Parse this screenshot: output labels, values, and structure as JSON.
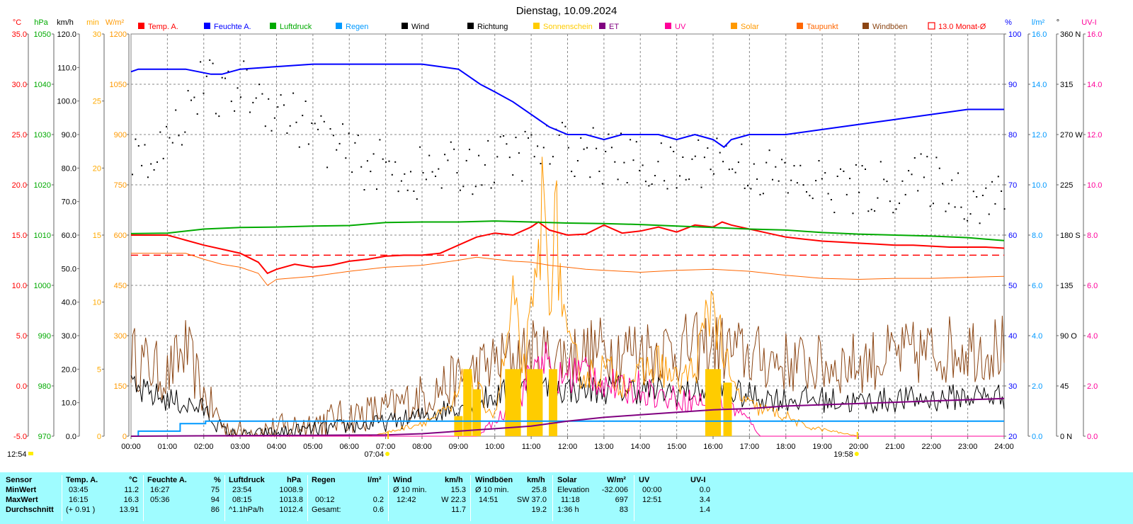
{
  "title": "Dienstag, 10.09.2024",
  "sunrise": {
    "time": "07:04",
    "hour": 7.067
  },
  "sunset": {
    "time": "19:58",
    "hour": 19.967
  },
  "moon_left": "12:54",
  "colors": {
    "temp": "#ff0000",
    "humidity": "#0000ff",
    "pressure": "#00aa00",
    "rain": "#0099ff",
    "wind": "#000000",
    "direction": "#000000",
    "sunshine": "#ffcc00",
    "et": "#800080",
    "uv": "#ff0099",
    "solar": "#ff9900",
    "dewpoint": "#ff6600",
    "gust": "#8b4513",
    "month_avg": "#ff0000"
  },
  "legend": [
    {
      "label": "Temp. A.",
      "color": "#ff0000",
      "text_color": "#ff0000",
      "style": "box"
    },
    {
      "label": "Feuchte A.",
      "color": "#0000ff",
      "text_color": "#0000ff",
      "style": "box"
    },
    {
      "label": "Luftdruck",
      "color": "#00aa00",
      "text_color": "#00aa00",
      "style": "box"
    },
    {
      "label": "Regen",
      "color": "#0099ff",
      "text_color": "#0099ff",
      "style": "box"
    },
    {
      "label": "Wind",
      "color": "#000000",
      "text_color": "#000000",
      "style": "box"
    },
    {
      "label": "Richtung",
      "color": "#000000",
      "text_color": "#000000",
      "style": "box"
    },
    {
      "label": "Sonnenschein",
      "color": "#ffcc00",
      "text_color": "#ffcc00",
      "style": "box"
    },
    {
      "label": "ET",
      "color": "#800080",
      "text_color": "#800080",
      "style": "box"
    },
    {
      "label": "UV",
      "color": "#ff0099",
      "text_color": "#ff0099",
      "style": "box"
    },
    {
      "label": "Solar",
      "color": "#ff9900",
      "text_color": "#ff9900",
      "style": "box"
    },
    {
      "label": "Taupunkt",
      "color": "#ff6600",
      "text_color": "#ff6600",
      "style": "box"
    },
    {
      "label": "Windböen",
      "color": "#8b4513",
      "text_color": "#8b4513",
      "style": "box"
    },
    {
      "label": "13.0 Monat-Ø",
      "color": "#ff0000",
      "text_color": "#ff0000",
      "style": "outline"
    }
  ],
  "axes": {
    "temp": {
      "unit": "°C",
      "min": -5,
      "max": 35,
      "ticks": [
        "35.0",
        "30.0",
        "25.0",
        "20.0",
        "15.0",
        "10.0",
        "5.0",
        "0.0",
        "-5.0"
      ],
      "color": "#ff0000"
    },
    "pressure": {
      "unit": "hPa",
      "min": 970,
      "max": 1050,
      "ticks": [
        "1050",
        "1040",
        "1030",
        "1020",
        "1010",
        "1000",
        "990",
        "980",
        "970"
      ],
      "color": "#00aa00"
    },
    "wind": {
      "unit": "km/h",
      "min": 0,
      "max": 120,
      "ticks": [
        "120.0",
        "110.0",
        "100.0",
        "90.0",
        "80.0",
        "70.0",
        "60.0",
        "50.0",
        "40.0",
        "30.0",
        "20.0",
        "10.0",
        "0.0"
      ],
      "color": "#000000"
    },
    "sunshine_min": {
      "unit": "min",
      "min": 0,
      "max": 30,
      "ticks": [
        "30",
        "25",
        "20",
        "15",
        "10",
        "5",
        "0"
      ],
      "color": "#ffaa00"
    },
    "solar": {
      "unit": "W/m²",
      "min": 0,
      "max": 1200,
      "ticks": [
        "1200",
        "1050",
        "900",
        "750",
        "600",
        "450",
        "300",
        "150",
        "0"
      ],
      "color": "#ff9900"
    },
    "humidity": {
      "unit": "%",
      "min": 20,
      "max": 100,
      "ticks": [
        "100",
        "90",
        "80",
        "70",
        "60",
        "50",
        "40",
        "30",
        "20"
      ],
      "color": "#0000ff"
    },
    "rain": {
      "unit": "l/m²",
      "min": 0,
      "max": 16,
      "ticks": [
        "16.0",
        "14.0",
        "12.0",
        "10.0",
        "8.0",
        "6.0",
        "4.0",
        "2.0",
        "0.0"
      ],
      "color": "#0099ff"
    },
    "direction": {
      "unit": "°",
      "min": 0,
      "max": 360,
      "ticks": [
        "360 N",
        "315",
        "270 W",
        "225",
        "180 S",
        "135",
        "90 O",
        "45",
        "0 N"
      ],
      "color": "#000000"
    },
    "uv": {
      "unit": "UV-I",
      "min": 0,
      "max": 16,
      "ticks": [
        "16.0",
        "14.0",
        "12.0",
        "10.0",
        "8.0",
        "6.0",
        "4.0",
        "2.0",
        "0.0"
      ],
      "color": "#ff0099"
    },
    "time_ticks": [
      "00:00",
      "01:00",
      "02:00",
      "03:00",
      "04:00",
      "05:00",
      "06:00",
      "07:00",
      "08:00",
      "09:00",
      "10:00",
      "11:00",
      "12:00",
      "13:00",
      "14:00",
      "15:00",
      "16:00",
      "17:00",
      "18:00",
      "19:00",
      "20:00",
      "21:00",
      "22:00",
      "23:00",
      "24:00"
    ]
  },
  "chart_data": {
    "type": "line",
    "title": "Dienstag, 10.09.2024",
    "x_unit": "hour",
    "month_avg_temp": 13.0,
    "series": [
      {
        "name": "Temp. A.",
        "axis": "temp",
        "color": "#ff0000",
        "x": [
          0,
          0.5,
          1,
          1.5,
          2,
          2.5,
          3,
          3.5,
          3.75,
          4,
          4.5,
          5,
          5.5,
          6,
          6.5,
          7,
          7.5,
          8,
          8.5,
          9,
          9.5,
          10,
          10.5,
          11,
          11.2,
          11.5,
          12,
          12.5,
          13,
          13.5,
          14,
          14.5,
          15,
          15.5,
          16,
          16.25,
          16.5,
          17,
          17.5,
          18,
          18.5,
          19,
          19.5,
          20,
          20.5,
          21,
          21.5,
          22,
          22.5,
          23,
          23.5,
          24
        ],
        "y": [
          15.0,
          15.0,
          15.0,
          14.5,
          14.0,
          13.6,
          13.2,
          12.3,
          11.2,
          11.6,
          12.1,
          11.8,
          12.0,
          12.4,
          12.6,
          12.9,
          13.0,
          13.0,
          13.2,
          14.0,
          14.8,
          15.2,
          15.0,
          15.8,
          16.3,
          15.5,
          15.0,
          15.1,
          16.0,
          15.2,
          15.4,
          15.8,
          15.3,
          16.0,
          15.8,
          16.3,
          16.0,
          15.6,
          15.2,
          14.8,
          14.6,
          14.4,
          14.3,
          14.2,
          14.1,
          14.0,
          14.0,
          13.9,
          13.8,
          13.8,
          13.8,
          13.7
        ]
      },
      {
        "name": "Feuchte A.",
        "axis": "humidity",
        "color": "#0000ff",
        "x": [
          0,
          0.2,
          1.5,
          2.2,
          2.5,
          3,
          4,
          5,
          5.5,
          7,
          8,
          8.5,
          9,
          9.3,
          9.6,
          10,
          10.5,
          11,
          11.5,
          12,
          12.5,
          13,
          13.5,
          14,
          14.5,
          15,
          15.5,
          16,
          16.3,
          16.5,
          17,
          18,
          19,
          20,
          21,
          22,
          23,
          23.5,
          24
        ],
        "y": [
          92.5,
          93,
          93,
          92,
          92,
          93,
          93.5,
          94,
          94,
          94,
          94,
          93.5,
          93,
          91.5,
          90,
          88.5,
          86.5,
          84,
          81.5,
          80,
          80,
          79,
          80,
          80,
          80,
          79,
          80,
          79,
          77.5,
          79,
          80,
          80,
          81,
          82,
          83,
          84,
          85,
          85,
          85
        ]
      },
      {
        "name": "Luftdruck",
        "axis": "pressure",
        "color": "#00aa00",
        "x": [
          0,
          1,
          2,
          3,
          4,
          5,
          6,
          7,
          8,
          9,
          10,
          11,
          12,
          13,
          14,
          15,
          16,
          17,
          18,
          19,
          20,
          21,
          22,
          23,
          23.5,
          24
        ],
        "y": [
          1010.3,
          1010.4,
          1011.2,
          1011.5,
          1011.6,
          1011.8,
          1011.9,
          1012.5,
          1012.6,
          1012.6,
          1012.8,
          1012.6,
          1012.4,
          1012.3,
          1012.1,
          1011.8,
          1011.5,
          1011.2,
          1011.0,
          1010.5,
          1010.2,
          1010.0,
          1009.8,
          1009.5,
          1009.2,
          1008.9
        ]
      },
      {
        "name": "Taupunkt",
        "axis": "temp",
        "color": "#ff6600",
        "x": [
          0,
          1,
          1.5,
          2,
          2.5,
          3,
          3.5,
          3.75,
          4,
          5,
          6,
          7,
          8,
          9,
          9.5,
          10,
          10.5,
          11,
          11.5,
          12,
          12.5,
          13,
          14,
          15,
          16,
          17,
          18,
          19,
          20,
          21,
          22,
          23,
          24
        ],
        "y": [
          13.2,
          13.2,
          13.2,
          12.6,
          12.1,
          11.8,
          11.2,
          10.0,
          10.6,
          10.9,
          11.4,
          11.8,
          12.0,
          12.5,
          12.8,
          12.6,
          12.4,
          12.3,
          12.0,
          11.8,
          11.6,
          11.5,
          11.3,
          11.5,
          11.6,
          11.4,
          11.0,
          10.7,
          10.6,
          10.7,
          10.7,
          10.8,
          10.9
        ]
      },
      {
        "name": "Regen",
        "axis": "rain",
        "color": "#0099ff",
        "x": [
          0,
          0.2,
          1.3,
          1.35,
          2.0,
          2.05,
          24
        ],
        "y": [
          0,
          0.2,
          0.2,
          0.5,
          0.5,
          0.6,
          0.6
        ]
      },
      {
        "name": "ET",
        "axis": "rain",
        "color": "#800080",
        "x": [
          0,
          7,
          8,
          9,
          10,
          11,
          12,
          13,
          14,
          15,
          16,
          17,
          18,
          19,
          20,
          21,
          22,
          23,
          24
        ],
        "y": [
          0,
          0.05,
          0.1,
          0.2,
          0.3,
          0.4,
          0.6,
          0.75,
          0.85,
          0.95,
          1.05,
          1.1,
          1.2,
          1.25,
          1.3,
          1.35,
          1.4,
          1.45,
          1.5
        ]
      }
    ],
    "sunshine_bars": {
      "axis": "sunshine_min",
      "color": "#ffcc00",
      "x": [
        9.0,
        9.25,
        9.5,
        10.4,
        10.6,
        11.0,
        11.2,
        11.6,
        15.9,
        16.1,
        16.4
      ],
      "y": [
        1.5,
        5.0,
        3.5,
        5.0,
        5.0,
        5.0,
        5.0,
        5.0,
        5.0,
        5.0,
        4.0
      ]
    },
    "summary": {
      "temp_min": 11.2,
      "temp_max": 16.3,
      "temp_avg": 13.91,
      "humidity_min": 75,
      "humidity_max": 94,
      "humidity_avg": 86,
      "pressure_min": 1008.9,
      "pressure_max": 1013.8,
      "pressure_avg": 1012.4,
      "rain_max": 0.2,
      "rain_total": 0.6,
      "wind_avg10_max": 15.3,
      "wind_max": 22.3,
      "wind_avg": 11.7,
      "gust_avg10_max": 25.8,
      "gust_max": 37.0,
      "gust_avg": 19.2,
      "solar_max": 697,
      "solar_avg": 83,
      "uv_max": 3.4,
      "uv_avg": 1.4
    }
  },
  "stats": {
    "sensor_header": "Sensor",
    "row_labels": [
      "MinWert",
      "MaxWert",
      "Durchschnitt"
    ],
    "temp": {
      "title": "Temp. A.",
      "unit": "°C",
      "min_time": "03:45",
      "min_val": "11.2",
      "max_time": "16:15",
      "max_val": "16.3",
      "avg_note": "(+ 0.91 )",
      "avg_val": "13.91"
    },
    "humidity": {
      "title": "Feuchte A.",
      "unit": "%",
      "min_time": "16:27",
      "min_val": "75",
      "max_time": "05:36",
      "max_val": "94",
      "avg_val": "86"
    },
    "pressure": {
      "title": "Luftdruck",
      "unit": "hPa",
      "min_time": "23:54",
      "min_val": "1008.9",
      "max_time": "08:15",
      "max_val": "1013.8",
      "avg_note": "^1.1hPa/h",
      "avg_val": "1012.4"
    },
    "rain": {
      "title": "Regen",
      "unit": "l/m²",
      "max_time": "00:12",
      "max_val": "0.2",
      "avg_note": "Gesamt:",
      "avg_val": "0.6"
    },
    "wind": {
      "title": "Wind",
      "unit": "km/h",
      "min_note": "Ø 10 min.",
      "min_val": "15.3",
      "max_time": "12:42",
      "max_val": "W 22.3",
      "avg_val": "11.7"
    },
    "gust": {
      "title": "Windböen",
      "unit": "km/h",
      "min_note": "Ø 10 min.",
      "min_val": "25.8",
      "max_time": "14:51",
      "max_val": "SW 37.0",
      "avg_val": "19.2"
    },
    "solar": {
      "title": "Solar",
      "unit": "W/m²",
      "min_note": "Elevation",
      "min_val": "-32.006",
      "max_time": "11:18",
      "max_val": "697",
      "avg_note": "1:36 h",
      "avg_val": "83"
    },
    "uv": {
      "title": "UV",
      "unit": "UV-I",
      "min_time": "00:00",
      "min_val": "0.0",
      "max_time": "12:51",
      "max_val": "3.4",
      "avg_val": "1.4"
    }
  }
}
